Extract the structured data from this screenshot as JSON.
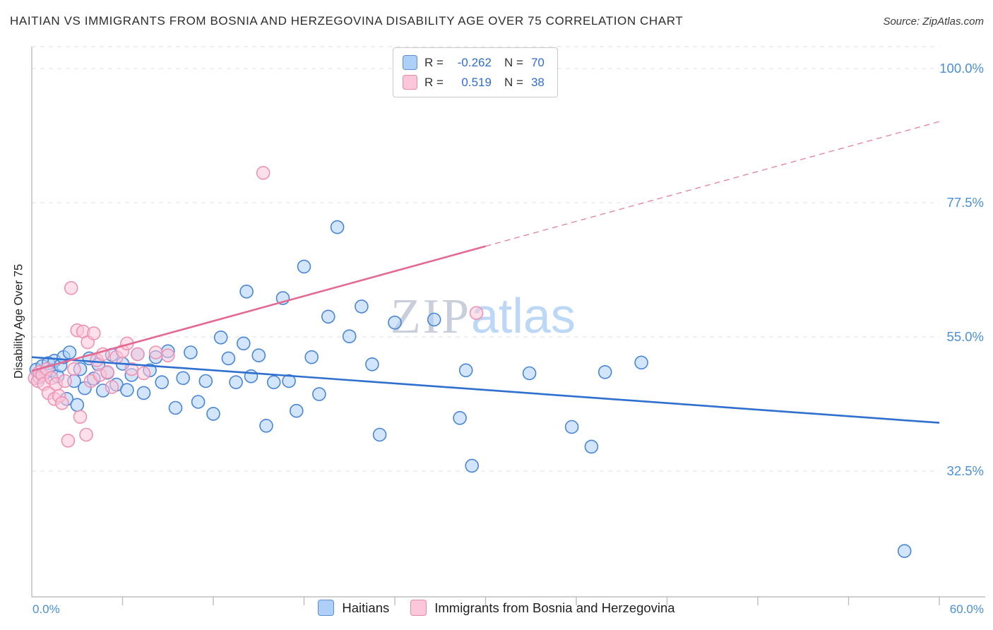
{
  "header": {
    "title": "HAITIAN VS IMMIGRANTS FROM BOSNIA AND HERZEGOVINA DISABILITY AGE OVER 75 CORRELATION CHART",
    "source": "Source: ZipAtlas.com"
  },
  "watermark": {
    "part1": "ZIP",
    "part2": "atlas"
  },
  "axes": {
    "y_label": "Disability Age Over 75",
    "y_ticks": [
      {
        "label": "100.0%",
        "value": 100
      },
      {
        "label": "77.5%",
        "value": 77.5
      },
      {
        "label": "55.0%",
        "value": 55
      },
      {
        "label": "32.5%",
        "value": 32.5
      }
    ],
    "x_min_label": "0.0%",
    "x_max_label": "60.0%",
    "x_tick_count": 10
  },
  "legend_box": {
    "rows": [
      {
        "r_label": "R =",
        "r_value": "-0.262",
        "n_label": "N =",
        "n_value": "70"
      },
      {
        "r_label": "R =",
        "r_value": "0.519",
        "n_label": "N =",
        "n_value": "38"
      }
    ]
  },
  "bottom_legend": {
    "items": [
      {
        "label": "Haitians"
      },
      {
        "label": "Immigrants from Bosnia and Herzegovina"
      }
    ]
  },
  "colors": {
    "haitian_fill": "#aecff7",
    "haitian_stroke": "#4a86d8",
    "haitian_line": "#2e6fd0",
    "bosnia_fill": "#fbc7d9",
    "bosnia_stroke": "#ef93b4",
    "bosnia_line": "#e4688f",
    "grid": "#e0e0e0",
    "axis_text_blue": "#4a90d9"
  },
  "chart_data": {
    "type": "scatter",
    "title": "HAITIAN VS IMMIGRANTS FROM BOSNIA AND HERZEGOVINA DISABILITY AGE OVER 75 CORRELATION CHART",
    "xlabel": "",
    "ylabel": "Disability Age Over 75",
    "x_range": [
      0,
      60
    ],
    "y_tick_values": [
      32.5,
      55,
      77.5,
      100
    ],
    "x_unit": "%",
    "y_unit": "%",
    "grid": "horizontal-dashed",
    "legend_position": "bottom",
    "series": [
      {
        "name": "Haitians",
        "R": -0.262,
        "N": 70,
        "fill": "#aecff7",
        "stroke": "#4a86d8",
        "line_color": "#2e6fd0",
        "trend": {
          "x0": 0,
          "y0": 51.6,
          "x1": 60,
          "y1": 40.6
        },
        "points": [
          [
            0.3,
            49.5
          ],
          [
            0.5,
            48.2
          ],
          [
            0.7,
            50.1
          ],
          [
            0.9,
            49.0
          ],
          [
            1.1,
            50.6
          ],
          [
            1.3,
            49.4
          ],
          [
            1.5,
            51.0
          ],
          [
            1.7,
            48.4
          ],
          [
            1.9,
            50.2
          ],
          [
            2.1,
            51.6
          ],
          [
            2.3,
            44.6
          ],
          [
            2.5,
            52.4
          ],
          [
            2.8,
            47.6
          ],
          [
            3.0,
            43.6
          ],
          [
            3.2,
            49.6
          ],
          [
            3.5,
            46.4
          ],
          [
            3.8,
            51.4
          ],
          [
            4.1,
            48.0
          ],
          [
            4.4,
            50.4
          ],
          [
            4.7,
            46.0
          ],
          [
            5.0,
            49.0
          ],
          [
            5.3,
            52.0
          ],
          [
            5.6,
            47.0
          ],
          [
            6.0,
            50.5
          ],
          [
            6.3,
            46.1
          ],
          [
            6.6,
            48.6
          ],
          [
            7.0,
            52.1
          ],
          [
            7.4,
            45.6
          ],
          [
            7.8,
            49.4
          ],
          [
            8.2,
            51.6
          ],
          [
            8.6,
            47.4
          ],
          [
            9.0,
            52.6
          ],
          [
            9.5,
            43.1
          ],
          [
            10.0,
            48.1
          ],
          [
            10.5,
            52.4
          ],
          [
            11.0,
            44.1
          ],
          [
            11.5,
            47.6
          ],
          [
            12.0,
            42.1
          ],
          [
            12.5,
            54.9
          ],
          [
            13.0,
            51.4
          ],
          [
            13.5,
            47.4
          ],
          [
            14.0,
            53.9
          ],
          [
            14.2,
            62.6
          ],
          [
            14.5,
            48.4
          ],
          [
            15.0,
            51.9
          ],
          [
            15.5,
            40.1
          ],
          [
            16.0,
            47.4
          ],
          [
            16.6,
            61.5
          ],
          [
            17.0,
            47.6
          ],
          [
            17.5,
            42.6
          ],
          [
            18.0,
            66.8
          ],
          [
            18.5,
            51.6
          ],
          [
            19.0,
            45.4
          ],
          [
            19.6,
            58.4
          ],
          [
            20.2,
            73.4
          ],
          [
            21.0,
            55.1
          ],
          [
            21.8,
            60.1
          ],
          [
            22.5,
            50.4
          ],
          [
            23.0,
            38.6
          ],
          [
            24.0,
            57.4
          ],
          [
            26.6,
            57.9
          ],
          [
            28.3,
            41.4
          ],
          [
            28.7,
            49.4
          ],
          [
            29.1,
            33.4
          ],
          [
            32.9,
            48.9
          ],
          [
            35.7,
            39.9
          ],
          [
            37.0,
            36.6
          ],
          [
            37.9,
            49.1
          ],
          [
            40.3,
            50.7
          ],
          [
            57.7,
            19.1
          ]
        ]
      },
      {
        "name": "Immigrants from Bosnia and Herzegovina",
        "R": 0.519,
        "N": 38,
        "fill": "#fbc7d9",
        "stroke": "#ef93b4",
        "line_color": "#e4688f",
        "trend": {
          "x0": 0,
          "y0": 49.3,
          "x1": 30,
          "y1": 70.2,
          "dash": {
            "x1": 60,
            "y1": 91.1
          }
        },
        "points": [
          [
            0.2,
            48.1
          ],
          [
            0.4,
            47.6
          ],
          [
            0.5,
            49.1
          ],
          [
            0.7,
            48.6
          ],
          [
            0.8,
            47.1
          ],
          [
            1.0,
            49.6
          ],
          [
            1.1,
            45.6
          ],
          [
            1.3,
            48.1
          ],
          [
            1.5,
            44.6
          ],
          [
            1.6,
            47.1
          ],
          [
            1.8,
            45.1
          ],
          [
            2.0,
            43.9
          ],
          [
            2.2,
            47.6
          ],
          [
            2.4,
            37.6
          ],
          [
            2.6,
            63.2
          ],
          [
            2.8,
            49.6
          ],
          [
            3.0,
            56.1
          ],
          [
            3.2,
            41.6
          ],
          [
            3.4,
            55.9
          ],
          [
            3.6,
            38.6
          ],
          [
            3.7,
            54.1
          ],
          [
            3.9,
            47.6
          ],
          [
            4.1,
            55.6
          ],
          [
            4.3,
            51.1
          ],
          [
            4.5,
            48.6
          ],
          [
            4.7,
            52.1
          ],
          [
            5.0,
            49.1
          ],
          [
            5.3,
            46.6
          ],
          [
            5.6,
            51.6
          ],
          [
            6.0,
            52.6
          ],
          [
            6.3,
            53.9
          ],
          [
            6.6,
            49.6
          ],
          [
            7.0,
            52.1
          ],
          [
            7.4,
            48.9
          ],
          [
            8.2,
            52.4
          ],
          [
            9.0,
            51.9
          ],
          [
            15.3,
            82.5
          ],
          [
            29.4,
            59.0
          ]
        ]
      }
    ]
  }
}
